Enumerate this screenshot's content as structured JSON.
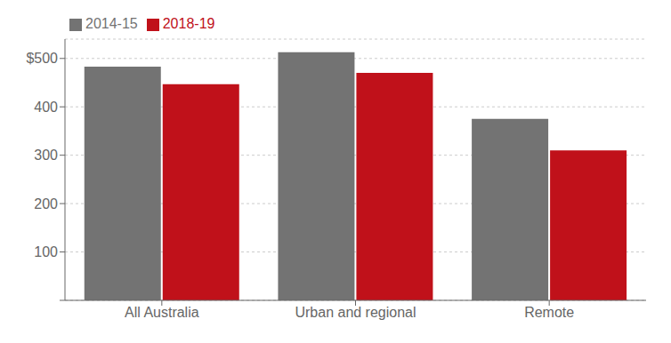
{
  "chart_data": {
    "type": "bar",
    "categories": [
      "All Australia",
      "Urban and regional",
      "Remote"
    ],
    "series": [
      {
        "name": "2014-15",
        "color": "#737373",
        "values": [
          483,
          513,
          375
        ]
      },
      {
        "name": "2018-19",
        "color": "#c0111a",
        "values": [
          447,
          470,
          310
        ]
      }
    ],
    "ylim": [
      0,
      540
    ],
    "yticks": [
      {
        "value": 0,
        "label": ""
      },
      100,
      200,
      300,
      400,
      {
        "value": 500,
        "label": "$500"
      }
    ],
    "grid": true,
    "legend": "upper left"
  }
}
